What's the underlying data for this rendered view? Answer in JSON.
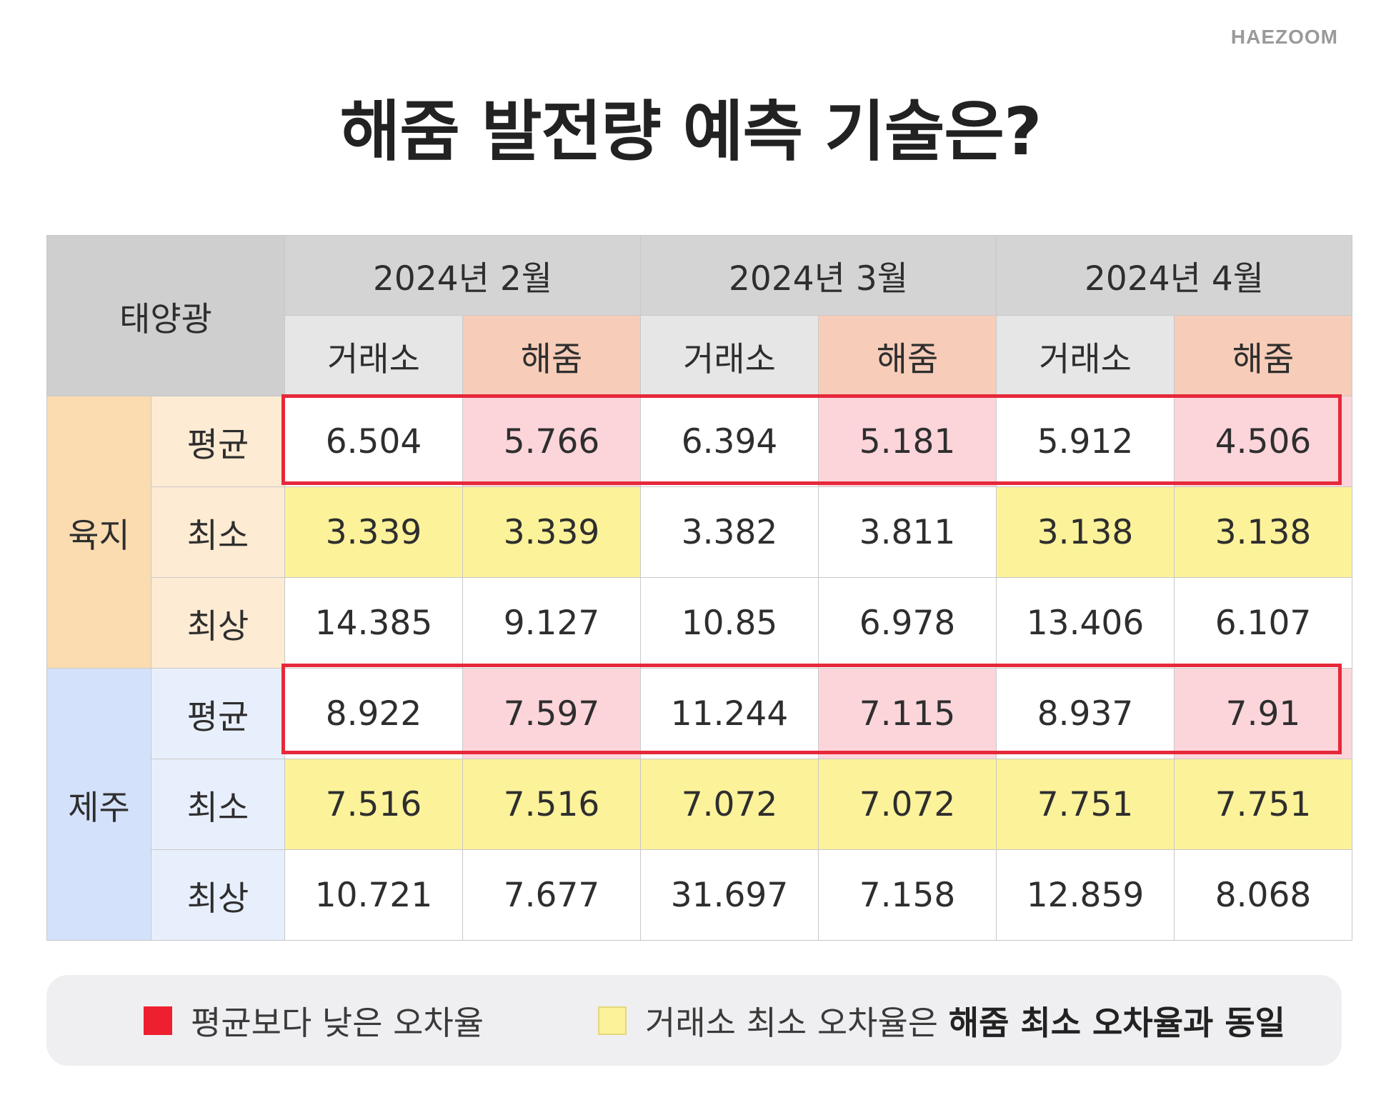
{
  "brand": "HAEZOOM",
  "title": "해줌 발전량 예측 기술은?",
  "colors": {
    "highlight_border": "#e6283a",
    "pink_cell": "#fcd5db",
    "yellow_cell": "#fcf29a",
    "haezoom_header": "#f7ccb8"
  },
  "chart_data": {
    "type": "table",
    "title": "해줌 발전량 예측 기술은?",
    "corner_label": "태양광",
    "months": [
      "2024년 2월",
      "2024년 3월",
      "2024년 4월"
    ],
    "sources": [
      "거래소",
      "해줌"
    ],
    "groups": [
      {
        "name": "육지",
        "rows": [
          {
            "metric": "평균",
            "values": [
              "6.504",
              "5.766",
              "6.394",
              "5.181",
              "5.912",
              "4.506"
            ],
            "highlight": [
              "",
              "pink",
              "",
              "pink",
              "",
              "pink"
            ],
            "boxed": true
          },
          {
            "metric": "최소",
            "values": [
              "3.339",
              "3.339",
              "3.382",
              "3.811",
              "3.138",
              "3.138"
            ],
            "highlight": [
              "yellow",
              "yellow",
              "",
              "",
              "yellow",
              "yellow"
            ],
            "boxed": false
          },
          {
            "metric": "최상",
            "values": [
              "14.385",
              "9.127",
              "10.85",
              "6.978",
              "13.406",
              "6.107"
            ],
            "highlight": [
              "",
              "",
              "",
              "",
              "",
              ""
            ],
            "boxed": false
          }
        ]
      },
      {
        "name": "제주",
        "rows": [
          {
            "metric": "평균",
            "values": [
              "8.922",
              "7.597",
              "11.244",
              "7.115",
              "8.937",
              "7.91"
            ],
            "highlight": [
              "",
              "pink",
              "",
              "pink",
              "",
              "pink"
            ],
            "boxed": true
          },
          {
            "metric": "최소",
            "values": [
              "7.516",
              "7.516",
              "7.072",
              "7.072",
              "7.751",
              "7.751"
            ],
            "highlight": [
              "yellow",
              "yellow",
              "yellow",
              "yellow",
              "yellow",
              "yellow"
            ],
            "boxed": false
          },
          {
            "metric": "최상",
            "values": [
              "10.721",
              "7.677",
              "31.697",
              "7.158",
              "12.859",
              "8.068"
            ],
            "highlight": [
              "",
              "",
              "",
              "",
              "",
              ""
            ],
            "boxed": false
          }
        ]
      }
    ]
  },
  "legend": {
    "red_label": "평균보다 낮은 오차율",
    "yellow_label_regular": "거래소 최소 오차율은 ",
    "yellow_label_bold": "해줌 최소 오차율과 동일"
  }
}
